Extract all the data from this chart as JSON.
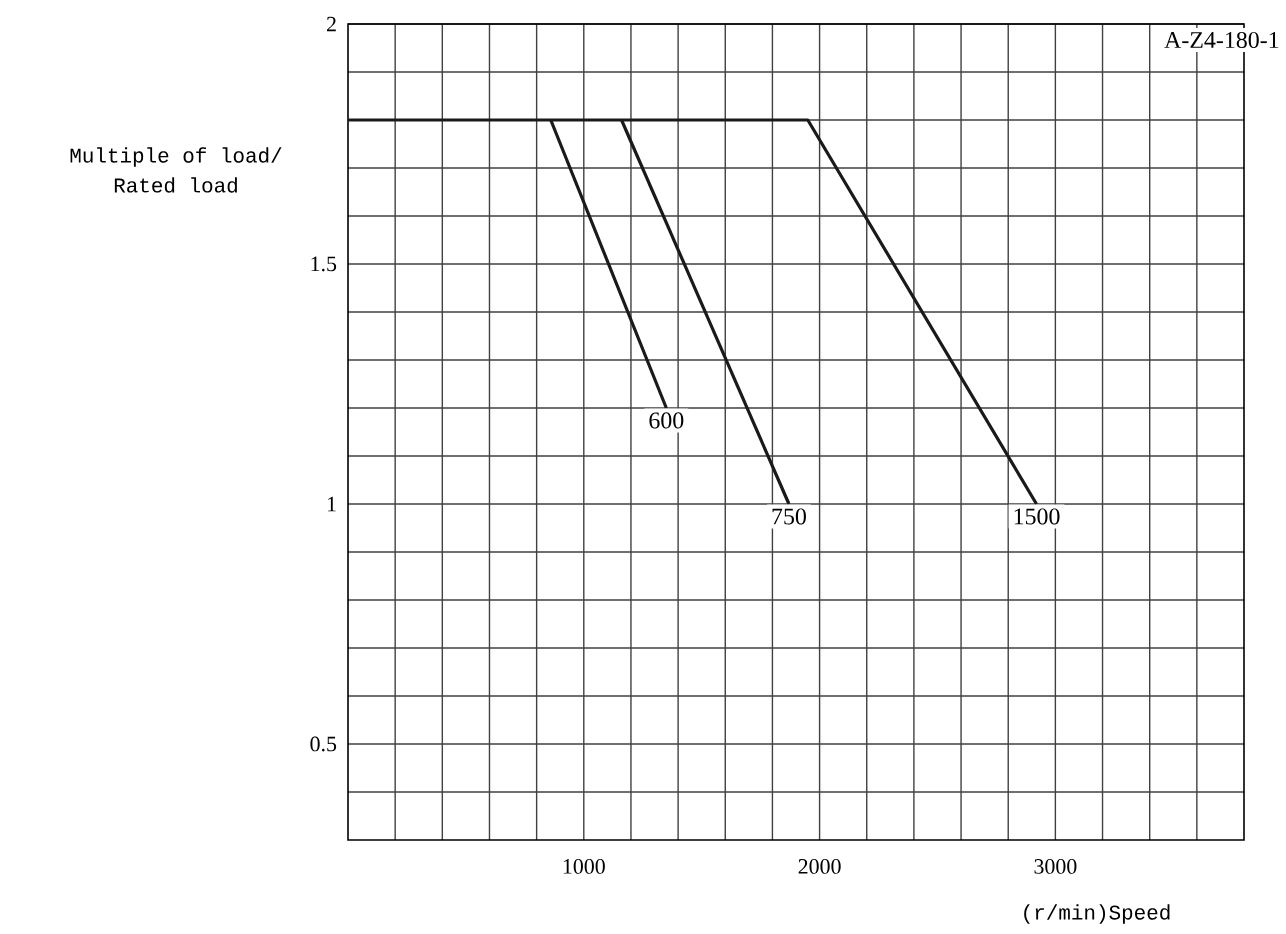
{
  "chart_data": {
    "type": "line",
    "title": "A-Z4-180-1",
    "xlabel": "(r/min)Speed",
    "ylabel": "Multiple of load/\nRated load",
    "series": [
      {
        "name": "600",
        "color": "#1a1a1a",
        "x": [
          860,
          1350
        ],
        "values": [
          1.8,
          1.2
        ]
      },
      {
        "name": "750",
        "color": "#1a1a1a",
        "x": [
          1160,
          1870
        ],
        "values": [
          1.8,
          1.0
        ]
      },
      {
        "name": "1500",
        "color": "#1a1a1a",
        "x": [
          0,
          1950,
          2920
        ],
        "values": [
          1.8,
          1.8,
          1.0
        ]
      }
    ],
    "xlim": [
      0,
      3800
    ],
    "ylim": [
      0.3,
      2
    ],
    "xticks": [
      {
        "value": 200,
        "label": null
      },
      {
        "value": 400,
        "label": null
      },
      {
        "value": 600,
        "label": null
      },
      {
        "value": 800,
        "label": null
      },
      1000,
      {
        "value": 1200,
        "label": null
      },
      {
        "value": 1400,
        "label": null
      },
      {
        "value": 1600,
        "label": null
      },
      {
        "value": 1800,
        "label": null
      },
      2000,
      {
        "value": 2200,
        "label": null
      },
      {
        "value": 2400,
        "label": null
      },
      {
        "value": 2600,
        "label": null
      },
      {
        "value": 2800,
        "label": null
      },
      3000,
      {
        "value": 3200,
        "label": null
      },
      {
        "value": 3400,
        "label": null
      },
      {
        "value": 3600,
        "label": null
      }
    ],
    "yticks": [
      {
        "value": 0.4,
        "label": null
      },
      0.5,
      {
        "value": 0.6,
        "label": null
      },
      {
        "value": 0.7,
        "label": null
      },
      {
        "value": 0.8,
        "label": null
      },
      {
        "value": 0.9,
        "label": null
      },
      1,
      {
        "value": 1.1,
        "label": null
      },
      {
        "value": 1.2,
        "label": null
      },
      {
        "value": 1.3,
        "label": null
      },
      {
        "value": 1.4,
        "label": null
      },
      1.5,
      {
        "value": 1.6,
        "label": null
      },
      {
        "value": 1.7,
        "label": null
      },
      {
        "value": 1.8,
        "label": null
      },
      {
        "value": 1.9,
        "label": null
      },
      2
    ],
    "grid": true
  }
}
